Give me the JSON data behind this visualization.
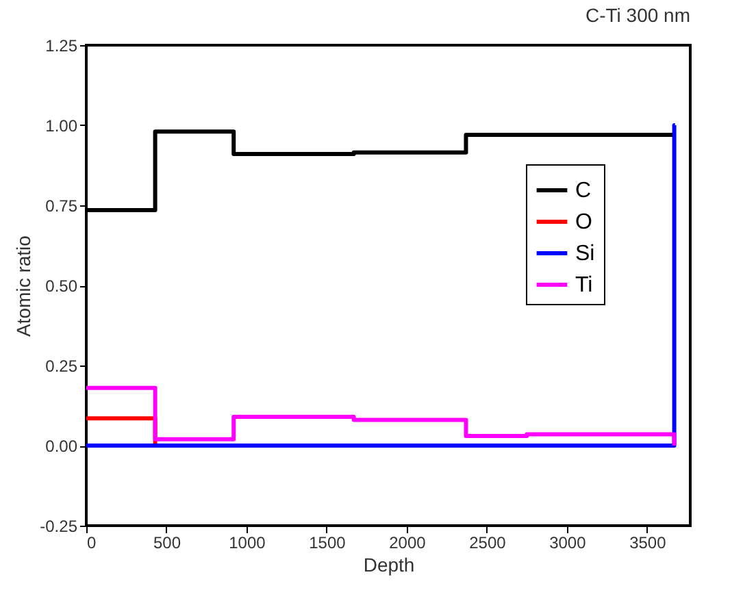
{
  "chart_data": {
    "type": "step",
    "title": "C-Ti 300 nm",
    "xlabel": "Depth",
    "ylabel": "Atomic ratio",
    "xlim": [
      0,
      3770
    ],
    "xticks": [
      0,
      500,
      1000,
      1500,
      2000,
      2500,
      3000,
      3500
    ],
    "ylim": [
      -0.25,
      1.25
    ],
    "yticks": [
      -0.25,
      {
        "value": 0,
        "label": "0.00"
      },
      0.25,
      {
        "value": 0.5,
        "label": "0.50"
      },
      0.75,
      {
        "value": 1,
        "label": "1.00"
      },
      1.25
    ],
    "grid": false,
    "legend": "top right",
    "line_style": "solid",
    "marker": "none",
    "series": [
      {
        "name": "C",
        "color": "#000000",
        "x": [
          0,
          430,
          920,
          1670,
          2370,
          3660
        ],
        "values": [
          0.735,
          0.98,
          0.91,
          0.915,
          0.97,
          0.97
        ]
      },
      {
        "name": "O",
        "color": "#ff0000",
        "x": [
          0,
          430
        ],
        "values": [
          0.085,
          0
        ]
      },
      {
        "name": "Si",
        "color": "#0000ff",
        "x": [
          0,
          3670,
          3675
        ],
        "values": [
          0,
          1.0,
          1.0
        ]
      },
      {
        "name": "Ti",
        "color": "#ff00ff",
        "x": [
          0,
          430,
          920,
          1670,
          2370,
          2750,
          3660,
          3670
        ],
        "values": [
          0.18,
          0.02,
          0.09,
          0.08,
          0.03,
          0.035,
          0.035,
          0
        ]
      }
    ]
  }
}
